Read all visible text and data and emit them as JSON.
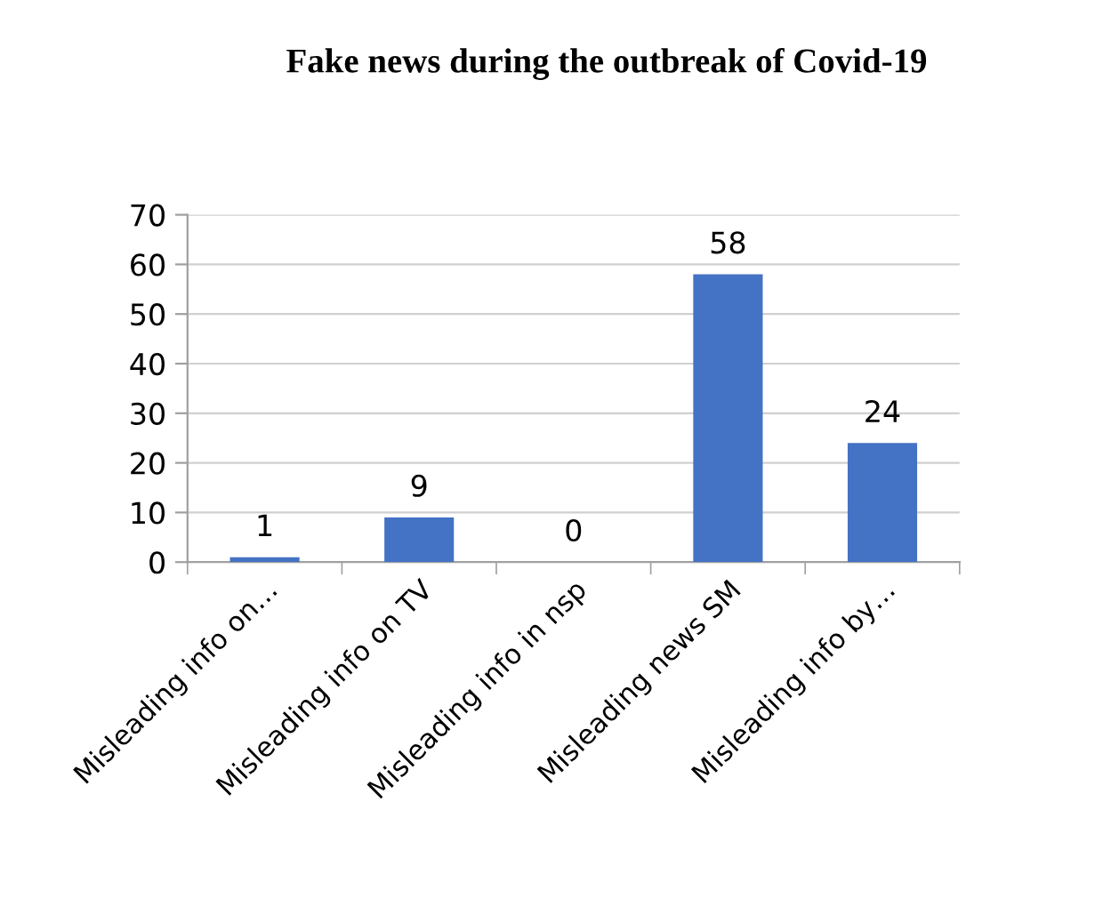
{
  "chart_data": {
    "type": "bar",
    "title": "Fake news during the outbreak of Covid-19",
    "categories": [
      "Misleading info on…",
      "Misleading info on TV",
      "Misleading info in nsp",
      "Misleading news SM",
      "Misleading info by…"
    ],
    "values": [
      1,
      9,
      0,
      58,
      24
    ],
    "color": "#4472c4",
    "ylim": [
      0,
      70
    ],
    "yticks": [
      0,
      10,
      20,
      30,
      40,
      50,
      60,
      70
    ],
    "grid": "y",
    "data_labels": true
  }
}
